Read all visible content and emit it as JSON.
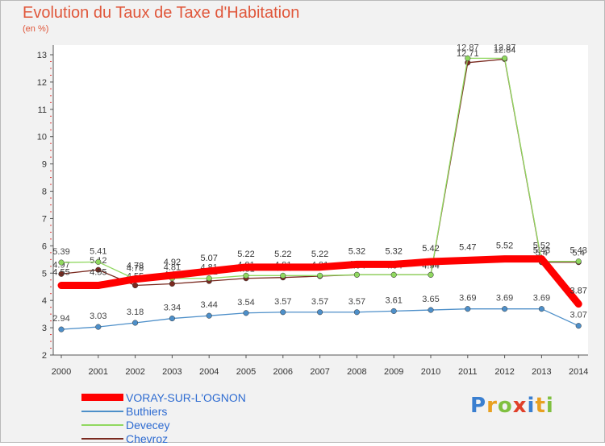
{
  "title": "Evolution du Taux de Taxe d'Habitation",
  "subtitle": "(en %)",
  "chart_data": {
    "type": "line",
    "x": [
      "2000",
      "2001",
      "2002",
      "2003",
      "2004",
      "2005",
      "2006",
      "2007",
      "2008",
      "2009",
      "2010",
      "2011",
      "2012",
      "2013",
      "2014"
    ],
    "ylim": [
      2,
      13
    ],
    "yticks": [
      2,
      3,
      4,
      5,
      6,
      7,
      8,
      9,
      10,
      11,
      12,
      13
    ],
    "series": [
      {
        "name": "Chevroz",
        "color": "#7a2a20",
        "values": [
          4.97,
          5.12,
          4.55,
          4.61,
          4.71,
          4.81,
          4.84,
          4.89,
          4.94,
          4.94,
          4.94,
          12.71,
          12.84,
          5.4,
          5.4
        ],
        "labels": [
          "4.97",
          "5.12",
          "4.55",
          "4.61",
          "4.71",
          "4.81",
          "4.84",
          "4.89",
          "4.94",
          "4.94",
          "4.94",
          "12.71",
          "12.84",
          "5.4",
          "5.4"
        ]
      },
      {
        "name": "Devecey",
        "color": "#90d860",
        "values": [
          5.39,
          5.41,
          4.78,
          4.81,
          4.81,
          4.91,
          4.91,
          4.91,
          4.94,
          4.94,
          4.94,
          12.87,
          12.87,
          5.43,
          5.43
        ],
        "labels": [
          "5.39",
          "5.41",
          "4.78",
          "4.81",
          "4.81",
          "4.91",
          "4.91",
          "4.91",
          "4.94",
          "4.94",
          "4.94",
          "12.87",
          "12.87",
          "5.43",
          "5.43"
        ]
      },
      {
        "name": "Buthiers",
        "color": "#4d8fc9",
        "values": [
          2.94,
          3.03,
          3.18,
          3.34,
          3.44,
          3.54,
          3.57,
          3.57,
          3.57,
          3.61,
          3.65,
          3.69,
          3.69,
          3.69,
          3.07
        ],
        "labels": [
          "2.94",
          "3.03",
          "3.18",
          "3.34",
          "3.44",
          "3.54",
          "3.57",
          "3.57",
          "3.57",
          "3.61",
          "3.65",
          "3.69",
          "3.69",
          "3.69",
          "3.07"
        ]
      },
      {
        "name": "VORAY-SUR-L'OGNON",
        "color": "#ff0000",
        "values": [
          4.55,
          4.55,
          4.78,
          4.92,
          5.07,
          5.22,
          5.22,
          5.22,
          5.32,
          5.32,
          5.42,
          5.47,
          5.52,
          5.52,
          3.87
        ],
        "labels": [
          "4.55",
          "4.55",
          "4.78",
          "4.92",
          "5.07",
          "5.22",
          "5.22",
          "5.22",
          "5.32",
          "5.32",
          "5.42",
          "5.47",
          "5.52",
          "5.52",
          "3.87"
        ]
      }
    ],
    "legend": [
      "VORAY-SUR-L'OGNON",
      "Buthiers",
      "Devecey",
      "Chevroz"
    ]
  },
  "legend": {
    "voray": "VORAY-SUR-L'OGNON",
    "buthiers": "Buthiers",
    "devecey": "Devecey",
    "chevroz": "Chevroz"
  },
  "logo": {
    "p": "P",
    "r": "r",
    "o": "o",
    "x": "x",
    "i": "i",
    "t": "t",
    "i2": "i"
  }
}
